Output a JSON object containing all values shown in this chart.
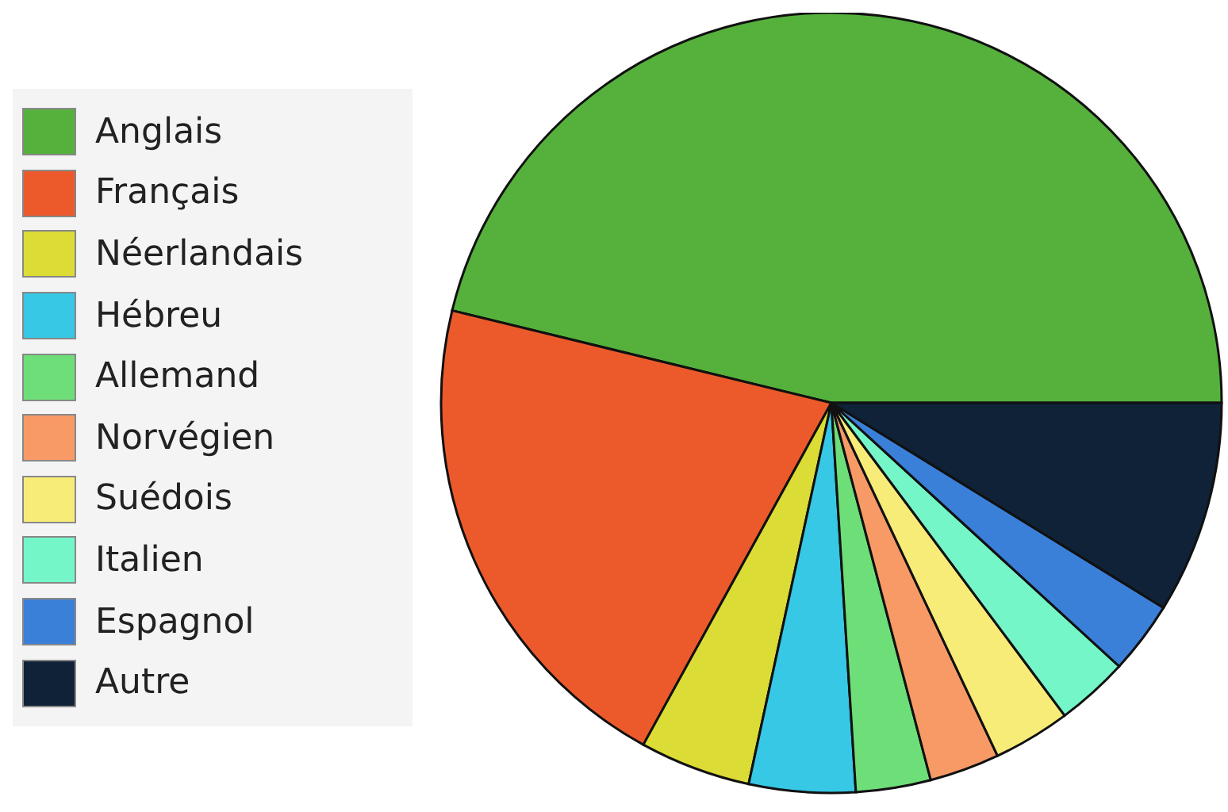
{
  "chart_data": {
    "type": "pie",
    "categories": [
      "Anglais",
      "Français",
      "Néerlandais",
      "Hébreu",
      "Allemand",
      "Norvégien",
      "Suédois",
      "Italien",
      "Espagnol",
      "Autre"
    ],
    "values": [
      46.2,
      20.8,
      4.6,
      4.4,
      3.1,
      2.9,
      3.2,
      3.0,
      3.0,
      8.8
    ],
    "colors": [
      "#55b13c",
      "#ec5a2c",
      "#dcdc36",
      "#36c8e4",
      "#6ede78",
      "#f89a66",
      "#f8ec78",
      "#74f6c8",
      "#3a7fd8",
      "#0f2238"
    ],
    "legend": "left"
  }
}
